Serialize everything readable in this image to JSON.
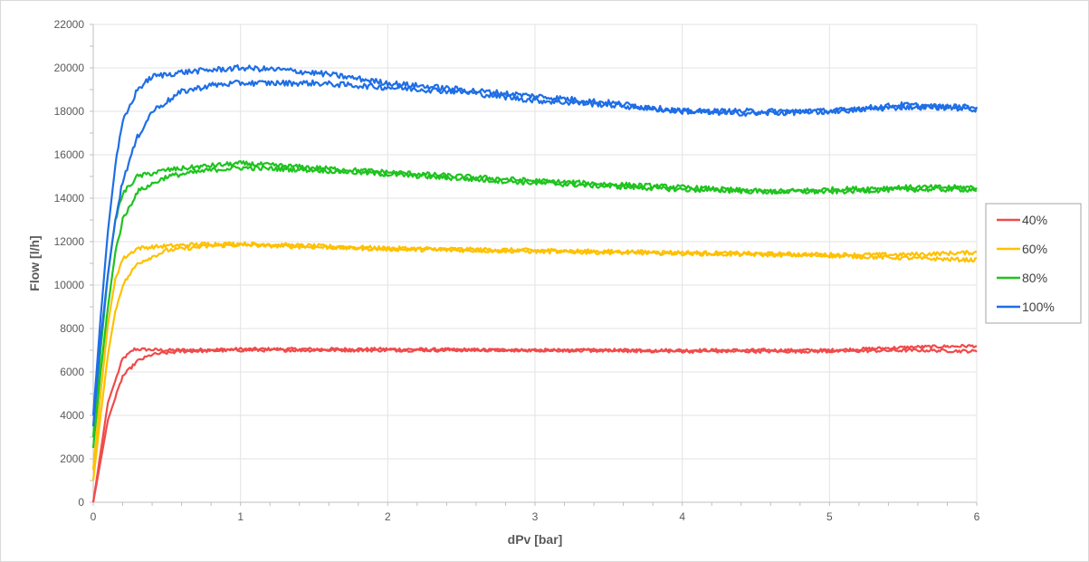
{
  "chart_data": {
    "type": "line",
    "xlabel": "dPv [bar]",
    "ylabel": "Flow [l/h]",
    "xlim": [
      0,
      6
    ],
    "ylim": [
      0,
      22000
    ],
    "x_ticks": [
      0,
      1,
      2,
      3,
      4,
      5,
      6
    ],
    "y_ticks": [
      0,
      2000,
      4000,
      6000,
      8000,
      10000,
      12000,
      14000,
      16000,
      18000,
      20000,
      22000
    ],
    "grid": true,
    "legend_position": "right",
    "series": [
      {
        "name": "40%",
        "color": "#f04b4b",
        "curves": [
          {
            "x": [
              0,
              0.1,
              0.2,
              0.28,
              0.5,
              1.0,
              1.5,
              2.0,
              3.0,
              4.0,
              5.0,
              5.6,
              6.0
            ],
            "y": [
              0,
              4600,
              6600,
              7050,
              7000,
              7050,
              7050,
              7050,
              7000,
              7000,
              7000,
              7150,
              7200
            ]
          },
          {
            "x": [
              0,
              0.1,
              0.2,
              0.3,
              0.4,
              0.6,
              1.0,
              1.5,
              2.0,
              3.0,
              4.0,
              5.0,
              5.6,
              6.0
            ],
            "y": [
              0,
              3800,
              5800,
              6500,
              6800,
              6950,
              7000,
              7000,
              7000,
              7000,
              6950,
              6950,
              7000,
              6950
            ]
          }
        ]
      },
      {
        "name": "60%",
        "color": "#ffc000",
        "curves": [
          {
            "x": [
              0,
              0.05,
              0.1,
              0.15,
              0.2,
              0.3,
              0.5,
              0.8,
              1.0,
              1.5,
              2.0,
              3.0,
              4.0,
              5.0,
              5.5,
              6.0
            ],
            "y": [
              1500,
              5000,
              8200,
              10300,
              11200,
              11700,
              11800,
              11900,
              11900,
              11800,
              11700,
              11600,
              11500,
              11400,
              11400,
              11500
            ]
          },
          {
            "x": [
              0,
              0.05,
              0.1,
              0.15,
              0.2,
              0.3,
              0.5,
              0.8,
              1.0,
              1.5,
              2.0,
              3.0,
              4.0,
              5.0,
              5.5,
              6.0
            ],
            "y": [
              1000,
              4000,
              6800,
              8800,
              10000,
              11000,
              11600,
              11800,
              11850,
              11750,
              11650,
              11550,
              11450,
              11350,
              11250,
              11150
            ]
          }
        ]
      },
      {
        "name": "80%",
        "color": "#1fc31f",
        "curves": [
          {
            "x": [
              0,
              0.05,
              0.1,
              0.15,
              0.2,
              0.3,
              0.5,
              0.8,
              1.0,
              1.5,
              2.0,
              3.0,
              4.0,
              4.6,
              5.0,
              5.5,
              6.0
            ],
            "y": [
              3000,
              7000,
              10500,
              13000,
              14200,
              15000,
              15300,
              15500,
              15600,
              15400,
              15200,
              14800,
              14500,
              14300,
              14400,
              14500,
              14500
            ]
          },
          {
            "x": [
              0,
              0.05,
              0.1,
              0.15,
              0.2,
              0.3,
              0.5,
              0.8,
              1.0,
              1.5,
              2.0,
              3.0,
              4.0,
              4.6,
              5.0,
              5.5,
              6.0
            ],
            "y": [
              2500,
              6000,
              9000,
              11500,
              13000,
              14300,
              15000,
              15300,
              15400,
              15300,
              15100,
              14700,
              14400,
              14300,
              14300,
              14400,
              14400
            ]
          }
        ]
      },
      {
        "name": "100%",
        "color": "#1f6ee6",
        "curves": [
          {
            "x": [
              0,
              0.05,
              0.1,
              0.15,
              0.2,
              0.3,
              0.4,
              0.6,
              0.8,
              1.0,
              1.3,
              1.6,
              2.0,
              2.5,
              3.0,
              3.5,
              4.0,
              4.5,
              5.0,
              5.5,
              6.0
            ],
            "y": [
              4000,
              8500,
              12500,
              15500,
              17500,
              19000,
              19600,
              19800,
              19900,
              20000,
              19900,
              19700,
              19300,
              19000,
              18700,
              18400,
              18000,
              18000,
              18000,
              18300,
              18100
            ]
          },
          {
            "x": [
              0,
              0.05,
              0.1,
              0.15,
              0.2,
              0.3,
              0.4,
              0.6,
              0.8,
              1.0,
              1.5,
              2.0,
              2.5,
              3.0,
              3.5,
              4.0,
              4.5,
              5.0,
              5.5,
              6.0
            ],
            "y": [
              3500,
              7500,
              10500,
              13000,
              14800,
              16800,
              18000,
              18900,
              19200,
              19300,
              19300,
              19100,
              18900,
              18500,
              18300,
              18000,
              17900,
              18000,
              18200,
              18200
            ]
          }
        ]
      }
    ]
  }
}
